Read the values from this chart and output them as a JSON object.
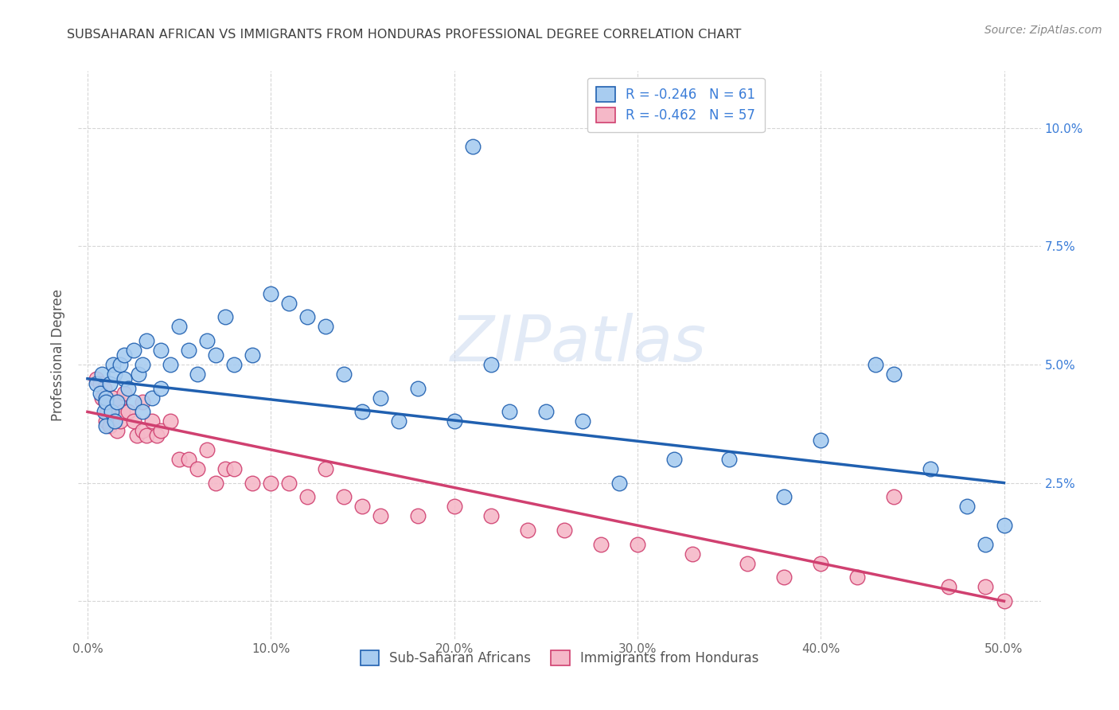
{
  "title": "SUBSAHARAN AFRICAN VS IMMIGRANTS FROM HONDURAS PROFESSIONAL DEGREE CORRELATION CHART",
  "source": "Source: ZipAtlas.com",
  "ylabel": "Professional Degree",
  "ytick_labels": [
    "",
    "2.5%",
    "5.0%",
    "7.5%",
    "10.0%"
  ],
  "yticks": [
    0.0,
    0.025,
    0.05,
    0.075,
    0.1
  ],
  "xticks": [
    0.0,
    0.1,
    0.2,
    0.3,
    0.4,
    0.5
  ],
  "xtick_labels": [
    "0.0%",
    "10.0%",
    "20.0%",
    "30.0%",
    "40.0%",
    "50.0%"
  ],
  "xlim": [
    -0.005,
    0.52
  ],
  "ylim": [
    -0.008,
    0.112
  ],
  "legend_label1": "Sub-Saharan Africans",
  "legend_label2": "Immigrants from Honduras",
  "r1": "-0.246",
  "n1": "61",
  "r2": "-0.462",
  "n2": "57",
  "blue_color": "#A8CCF0",
  "pink_color": "#F5B8C8",
  "blue_line_color": "#2060B0",
  "pink_line_color": "#D04070",
  "title_color": "#404040",
  "source_color": "#888888",
  "grid_color": "#CCCCCC",
  "legend_text_color": "#3B7DD8",
  "watermark": "ZIPatlas",
  "blue_x": [
    0.005,
    0.007,
    0.008,
    0.009,
    0.01,
    0.01,
    0.01,
    0.012,
    0.013,
    0.014,
    0.015,
    0.015,
    0.016,
    0.018,
    0.02,
    0.02,
    0.022,
    0.025,
    0.025,
    0.028,
    0.03,
    0.03,
    0.032,
    0.035,
    0.04,
    0.04,
    0.045,
    0.05,
    0.055,
    0.06,
    0.065,
    0.07,
    0.075,
    0.08,
    0.09,
    0.1,
    0.11,
    0.12,
    0.13,
    0.14,
    0.15,
    0.16,
    0.17,
    0.18,
    0.2,
    0.22,
    0.23,
    0.25,
    0.27,
    0.29,
    0.32,
    0.35,
    0.38,
    0.4,
    0.43,
    0.44,
    0.46,
    0.48,
    0.49,
    0.5,
    0.21
  ],
  "blue_y": [
    0.046,
    0.044,
    0.048,
    0.04,
    0.043,
    0.037,
    0.042,
    0.046,
    0.04,
    0.05,
    0.048,
    0.038,
    0.042,
    0.05,
    0.047,
    0.052,
    0.045,
    0.053,
    0.042,
    0.048,
    0.05,
    0.04,
    0.055,
    0.043,
    0.053,
    0.045,
    0.05,
    0.058,
    0.053,
    0.048,
    0.055,
    0.052,
    0.06,
    0.05,
    0.052,
    0.065,
    0.063,
    0.06,
    0.058,
    0.048,
    0.04,
    0.043,
    0.038,
    0.045,
    0.038,
    0.05,
    0.04,
    0.04,
    0.038,
    0.025,
    0.03,
    0.03,
    0.022,
    0.034,
    0.05,
    0.048,
    0.028,
    0.02,
    0.012,
    0.016,
    0.096
  ],
  "pink_x": [
    0.005,
    0.007,
    0.008,
    0.009,
    0.01,
    0.01,
    0.011,
    0.012,
    0.013,
    0.014,
    0.015,
    0.016,
    0.017,
    0.018,
    0.019,
    0.02,
    0.022,
    0.025,
    0.027,
    0.03,
    0.03,
    0.032,
    0.035,
    0.038,
    0.04,
    0.045,
    0.05,
    0.055,
    0.06,
    0.065,
    0.07,
    0.075,
    0.08,
    0.09,
    0.1,
    0.11,
    0.12,
    0.13,
    0.14,
    0.15,
    0.16,
    0.18,
    0.2,
    0.22,
    0.24,
    0.26,
    0.28,
    0.3,
    0.33,
    0.36,
    0.38,
    0.4,
    0.42,
    0.44,
    0.47,
    0.49,
    0.5
  ],
  "pink_y": [
    0.047,
    0.046,
    0.043,
    0.045,
    0.042,
    0.038,
    0.04,
    0.037,
    0.04,
    0.043,
    0.038,
    0.036,
    0.042,
    0.038,
    0.04,
    0.044,
    0.04,
    0.038,
    0.035,
    0.042,
    0.036,
    0.035,
    0.038,
    0.035,
    0.036,
    0.038,
    0.03,
    0.03,
    0.028,
    0.032,
    0.025,
    0.028,
    0.028,
    0.025,
    0.025,
    0.025,
    0.022,
    0.028,
    0.022,
    0.02,
    0.018,
    0.018,
    0.02,
    0.018,
    0.015,
    0.015,
    0.012,
    0.012,
    0.01,
    0.008,
    0.005,
    0.008,
    0.005,
    0.022,
    0.003,
    0.003,
    0.0
  ]
}
